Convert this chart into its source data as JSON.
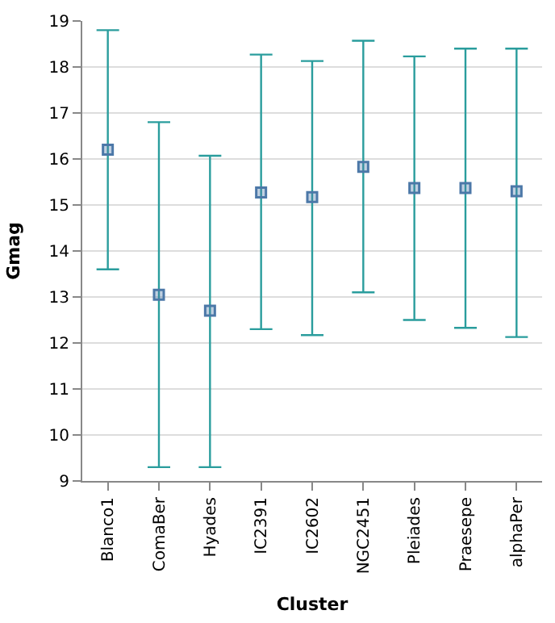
{
  "chart_data": {
    "type": "scatter",
    "xlabel": "Cluster",
    "ylabel": "Gmag",
    "categories": [
      "Blanco1",
      "ComaBer",
      "Hyades",
      "IC2391",
      "IC2602",
      "NGC2451",
      "Pleiades",
      "Praesepe",
      "alphaPer"
    ],
    "series": [
      {
        "color": "#4c78a8",
        "values": [
          16.2,
          13.05,
          12.7,
          15.27,
          15.17,
          15.83,
          15.37,
          15.37,
          15.3
        ],
        "errors": [
          [
            13.6,
            18.8
          ],
          [
            9.3,
            16.8
          ],
          [
            9.3,
            16.07
          ],
          [
            12.3,
            18.27
          ],
          [
            12.17,
            18.13
          ],
          [
            13.1,
            18.57
          ],
          [
            12.5,
            18.23
          ],
          [
            12.33,
            18.4
          ],
          [
            12.13,
            18.4
          ]
        ]
      }
    ],
    "ylim": [
      9,
      19
    ],
    "yticks": [
      9,
      10,
      11,
      12,
      13,
      14,
      15,
      16,
      17,
      18,
      19
    ],
    "grid": "y",
    "marker": "square"
  }
}
